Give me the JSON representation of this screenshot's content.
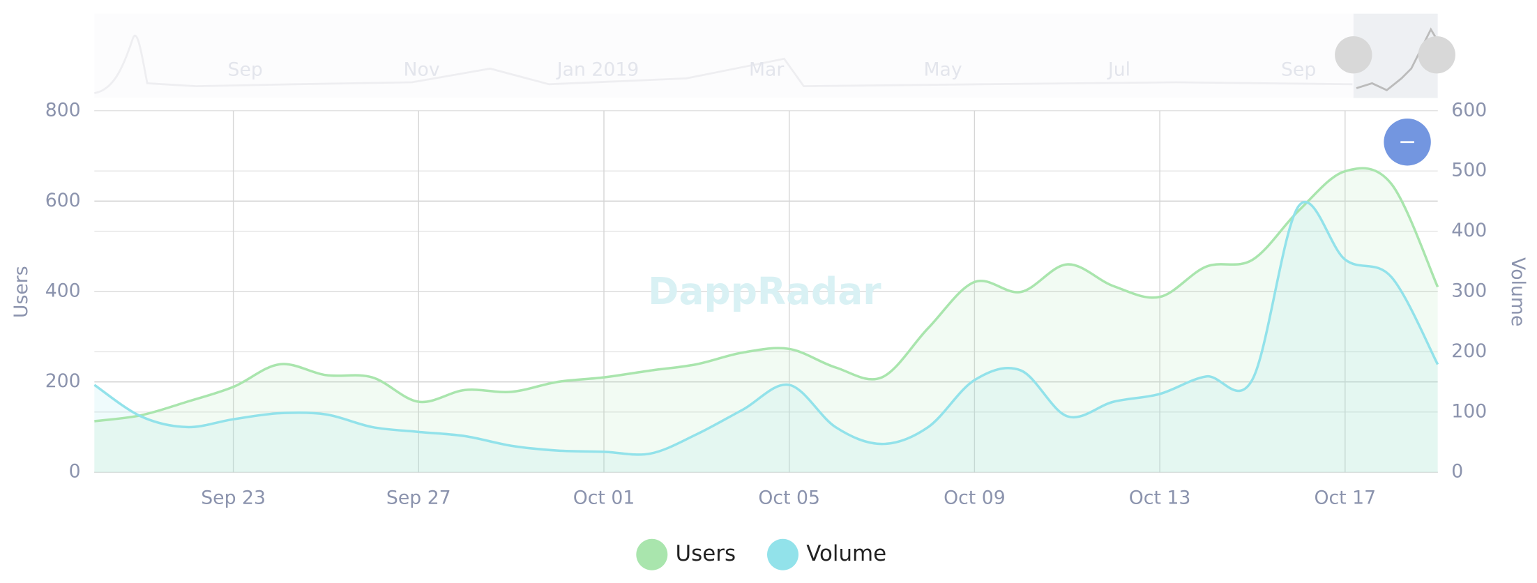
{
  "chart_data": {
    "type": "line",
    "x": [
      null,
      null,
      null,
      "Sep 23",
      null,
      null,
      null,
      "Sep 27",
      null,
      null,
      null,
      "Oct 01",
      null,
      null,
      null,
      "Oct 05",
      null,
      null,
      null,
      "Oct 09",
      null,
      null,
      null,
      "Oct 13",
      null,
      null,
      null,
      "Oct 17",
      null,
      null
    ],
    "series": [
      {
        "name": "Users",
        "color": "#a9e5ad",
        "axis": "y",
        "values": [
          113,
          126,
          156,
          189,
          239,
          215,
          210,
          156,
          182,
          178,
          200,
          210,
          225,
          239,
          265,
          273,
          232,
          210,
          319,
          421,
          399,
          460,
          412,
          388,
          455,
          470,
          579,
          666,
          638,
          410
        ]
      },
      {
        "name": "Volume",
        "color": "#92e2ea",
        "axis": "y2",
        "values": [
          145,
          93,
          75,
          88,
          98,
          96,
          75,
          67,
          60,
          44,
          36,
          34,
          31,
          63,
          104,
          145,
          75,
          47,
          75,
          153,
          169,
          93,
          117,
          130,
          159,
          154,
          442,
          353,
          324,
          179
        ]
      }
    ],
    "ylabel": "Users",
    "y2label": "Volume",
    "ylim": [
      0,
      800
    ],
    "yticks": [
      0,
      200,
      400,
      600,
      800
    ],
    "y2lim": [
      0,
      600
    ],
    "y2ticks": [
      0,
      100,
      200,
      300,
      400,
      500,
      600
    ],
    "grid": true,
    "legend": "bottom",
    "watermark": "DappRadar",
    "navigator_labels": [
      "Sep",
      "Nov",
      "Jan 2019",
      "Mar",
      "May",
      "Jul",
      "Sep"
    ]
  }
}
